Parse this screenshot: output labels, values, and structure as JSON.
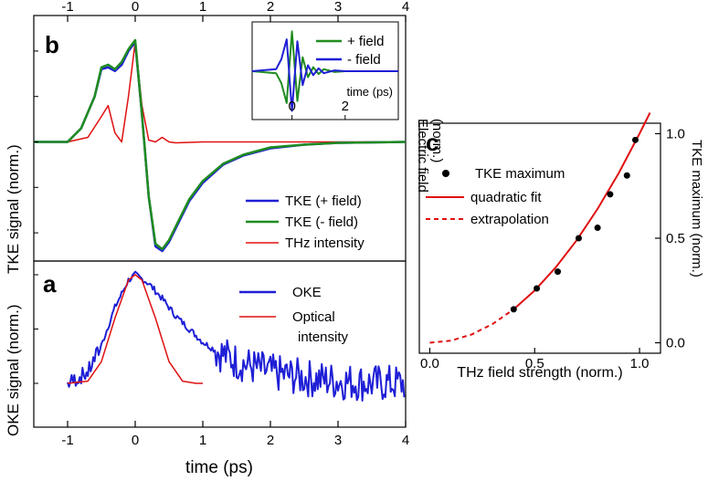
{
  "chart_data": [
    {
      "id": "b",
      "type": "line",
      "panel_label": "b",
      "ylabel": "TKE signal (norm.)",
      "xlim": [
        -1.5,
        4
      ],
      "x_ticks": [
        "-1",
        "0",
        "1",
        "2",
        "3",
        "4"
      ],
      "legend_position": "bottom-right",
      "series": [
        {
          "name": "TKE (+ field)",
          "color": "#1f1fd6",
          "x": [
            -1.5,
            -1.0,
            -0.8,
            -0.6,
            -0.5,
            -0.4,
            -0.3,
            -0.2,
            -0.1,
            0.0,
            0.1,
            0.2,
            0.3,
            0.4,
            0.5,
            0.6,
            0.8,
            1.0,
            1.3,
            1.6,
            2.0,
            2.5,
            3.0,
            4.0
          ],
          "y": [
            0.0,
            0.0,
            0.15,
            0.5,
            0.8,
            0.82,
            0.78,
            0.85,
            1.0,
            1.1,
            0.3,
            -0.6,
            -1.15,
            -1.2,
            -1.1,
            -0.95,
            -0.65,
            -0.45,
            -0.25,
            -0.15,
            -0.07,
            -0.03,
            -0.01,
            0.0
          ]
        },
        {
          "name": "TKE (-  field)",
          "color": "#1f8c1f",
          "x": [
            -1.5,
            -1.0,
            -0.8,
            -0.6,
            -0.5,
            -0.4,
            -0.3,
            -0.2,
            -0.1,
            0.0,
            0.1,
            0.2,
            0.3,
            0.4,
            0.5,
            0.6,
            0.8,
            1.0,
            1.3,
            1.6,
            2.0,
            2.5,
            3.0,
            4.0
          ],
          "y": [
            0.0,
            0.0,
            0.15,
            0.5,
            0.82,
            0.85,
            0.8,
            0.88,
            1.02,
            1.12,
            0.3,
            -0.6,
            -1.12,
            -1.18,
            -1.08,
            -0.93,
            -0.63,
            -0.43,
            -0.24,
            -0.14,
            -0.06,
            -0.03,
            -0.01,
            0.0
          ]
        },
        {
          "name": "THz intensity",
          "color": "#e01010",
          "x": [
            -1.5,
            -1.0,
            -0.7,
            -0.5,
            -0.4,
            -0.3,
            -0.2,
            -0.1,
            0.0,
            0.1,
            0.2,
            0.3,
            0.4,
            0.5,
            0.6,
            1.0,
            4.0
          ],
          "y": [
            0.0,
            0.0,
            0.05,
            0.28,
            0.4,
            0.1,
            0.0,
            0.5,
            1.1,
            0.4,
            0.02,
            0.0,
            0.05,
            0.0,
            -0.01,
            0.0,
            0.0
          ]
        }
      ]
    },
    {
      "id": "b-inset",
      "type": "line",
      "xlabel": "time (ps)",
      "ylabel_lines": [
        "Electric field",
        "(norm.)"
      ],
      "xlim": [
        -1.5,
        4
      ],
      "x_ticks": [
        "0",
        "2"
      ],
      "legend_position": "top-right",
      "series": [
        {
          "name": "+ field",
          "color": "#1f8c1f",
          "x": [
            -1.5,
            -0.6,
            -0.4,
            -0.2,
            0.0,
            0.2,
            0.4,
            0.6,
            0.8,
            1.0,
            1.2,
            1.6,
            2.0,
            4.0
          ],
          "y": [
            0.0,
            -0.05,
            -0.3,
            -0.8,
            1.0,
            -0.75,
            0.35,
            -0.15,
            0.1,
            -0.07,
            0.05,
            -0.02,
            0.0,
            0.0
          ]
        },
        {
          "name": "-  field",
          "color": "#1f1fd6",
          "x": [
            -1.5,
            -0.6,
            -0.4,
            -0.2,
            0.0,
            0.2,
            0.4,
            0.6,
            0.8,
            1.0,
            1.2,
            1.6,
            2.0,
            4.0
          ],
          "y": [
            0.0,
            0.05,
            0.3,
            0.8,
            -1.0,
            0.75,
            -0.35,
            0.15,
            -0.1,
            0.07,
            -0.05,
            0.02,
            0.0,
            0.0
          ]
        }
      ]
    },
    {
      "id": "a",
      "type": "line",
      "panel_label": "a",
      "xlabel": "time (ps)",
      "ylabel": "OKE signal (norm.)",
      "xlim": [
        -1.5,
        4
      ],
      "x_ticks": [
        "-1",
        "0",
        "1",
        "2",
        "3",
        "4"
      ],
      "legend_position": "top-right",
      "series": [
        {
          "name": "OKE",
          "color": "#1f1fd6",
          "x": [
            -1.0,
            -0.7,
            -0.5,
            -0.3,
            -0.1,
            0.0,
            0.2,
            0.4,
            0.6,
            0.8,
            1.0,
            1.2,
            1.5,
            2.0,
            2.5,
            3.0,
            3.5,
            4.0
          ],
          "y": [
            0.0,
            0.1,
            0.35,
            0.7,
            0.95,
            1.0,
            0.92,
            0.78,
            0.62,
            0.5,
            0.38,
            0.3,
            0.2,
            0.1,
            0.05,
            0.02,
            0.0,
            0.0
          ]
        },
        {
          "name": "Optical\nintensity",
          "color": "#e01010",
          "x": [
            -1.0,
            -0.7,
            -0.5,
            -0.3,
            -0.1,
            0.0,
            0.1,
            0.3,
            0.5,
            0.7,
            0.9,
            1.0
          ],
          "y": [
            0.0,
            0.02,
            0.2,
            0.6,
            0.95,
            1.0,
            0.95,
            0.6,
            0.2,
            0.02,
            0.0,
            0.0
          ]
        }
      ]
    },
    {
      "id": "c",
      "type": "scatter",
      "panel_label": "c",
      "xlabel": "THz field strength (norm.)",
      "ylabel": "TKE maximum (norm.)",
      "xlim": [
        -0.05,
        1.1
      ],
      "ylim": [
        -0.05,
        1.05
      ],
      "x_ticks": [
        0.0,
        0.5,
        1.0
      ],
      "y_ticks": [
        0.0,
        0.5,
        1.0
      ],
      "legend_position": "top-left",
      "series": [
        {
          "name": "TKE maximum",
          "color": "#000000",
          "x": [
            0.4,
            0.51,
            0.61,
            0.71,
            0.8,
            0.86,
            0.94,
            0.98
          ],
          "y": [
            0.16,
            0.26,
            0.34,
            0.5,
            0.55,
            0.71,
            0.8,
            0.97
          ]
        },
        {
          "name": "quadratic fit",
          "color": "#e01010",
          "style": "solid",
          "x": [
            0.4,
            0.5,
            0.6,
            0.7,
            0.8,
            0.9,
            1.0,
            1.05
          ],
          "y": [
            0.16,
            0.25,
            0.36,
            0.49,
            0.64,
            0.81,
            1.0,
            1.1
          ]
        },
        {
          "name": "extrapolation",
          "color": "#e01010",
          "style": "dashed",
          "x": [
            0.0,
            0.1,
            0.2,
            0.3,
            0.4
          ],
          "y": [
            0.0,
            0.01,
            0.04,
            0.09,
            0.16
          ]
        }
      ]
    }
  ]
}
